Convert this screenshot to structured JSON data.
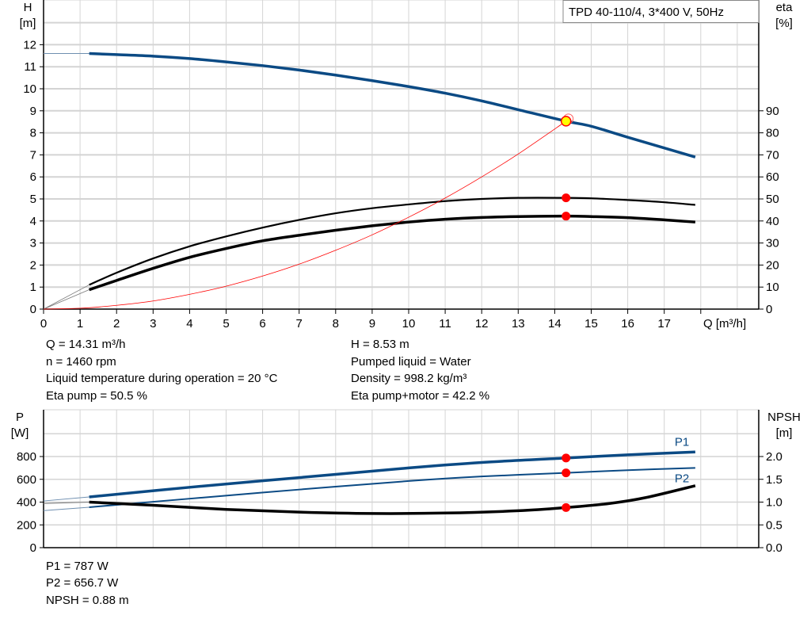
{
  "chart_data": [
    {
      "type": "line",
      "title": "TPD 40-110/4, 3*400 V, 50Hz",
      "xlabel": "Q [m³/h]",
      "ylabel": [
        "H",
        "[m]"
      ],
      "y2label": [
        "eta",
        "[%]"
      ],
      "xlim": [
        0,
        19
      ],
      "ylim": [
        0,
        13
      ],
      "y2lim": [
        0,
        130
      ],
      "xticks": [
        0,
        1,
        2,
        3,
        4,
        5,
        6,
        7,
        8,
        9,
        10,
        11,
        12,
        13,
        14,
        15,
        16,
        17
      ],
      "yticks": [
        0,
        1,
        2,
        3,
        4,
        5,
        6,
        7,
        8,
        9,
        10,
        11,
        12
      ],
      "y2ticks": [
        0,
        10,
        20,
        30,
        40,
        50,
        60,
        70,
        80,
        90
      ],
      "grid": true,
      "series": [
        {
          "key": "H",
          "axis": "left",
          "color": "#0b4a84",
          "x": [
            1.25,
            2,
            3,
            4,
            5,
            6,
            7,
            8,
            9,
            10,
            11,
            12,
            13,
            14.31,
            15,
            16,
            17.85
          ],
          "y": [
            11.6,
            11.55,
            11.48,
            11.37,
            11.22,
            11.05,
            10.85,
            10.62,
            10.37,
            10.1,
            9.8,
            9.45,
            9.05,
            8.53,
            8.3,
            7.8,
            6.9
          ],
          "extension_to_zero": 11.6
        },
        {
          "key": "eta_pump",
          "axis": "right",
          "color": "#000000",
          "x": [
            1.25,
            2,
            3,
            4,
            5,
            6,
            7,
            8,
            9,
            10,
            11,
            12,
            13,
            14.31,
            15,
            16,
            17,
            17.85
          ],
          "y": [
            11,
            16.5,
            23,
            28.5,
            33,
            37,
            40.5,
            43.5,
            45.8,
            47.5,
            49,
            50,
            50.5,
            50.5,
            50.3,
            49.5,
            48.5,
            47.3
          ]
        },
        {
          "key": "eta_pump_motor",
          "axis": "right",
          "color": "#000000",
          "x": [
            1.25,
            2,
            3,
            4,
            5,
            6,
            7,
            8,
            9,
            10,
            11,
            12,
            13,
            14.31,
            15,
            16,
            17,
            17.85
          ],
          "y": [
            8.8,
            13,
            18.5,
            23.5,
            27.5,
            31,
            33.5,
            35.8,
            37.8,
            39.5,
            40.8,
            41.6,
            42,
            42.2,
            42,
            41.5,
            40.5,
            39.5
          ]
        },
        {
          "key": "system_curve",
          "axis": "left",
          "color": "#ff0000",
          "x": [
            0,
            1,
            2,
            3,
            4,
            5,
            6,
            7,
            8,
            9,
            10,
            11,
            12,
            13,
            14.31
          ],
          "y": [
            0,
            0.04,
            0.17,
            0.37,
            0.67,
            1.04,
            1.5,
            2.04,
            2.67,
            3.37,
            4.17,
            5.04,
            6.0,
            7.04,
            8.53
          ]
        }
      ],
      "duty_points": [
        {
          "series": "H",
          "x": 14.31,
          "y": 8.53,
          "color": "#ffff00"
        },
        {
          "series": "eta_pump",
          "x": 14.31,
          "y": 50.5,
          "color": "#ff0000"
        },
        {
          "series": "eta_pump_motor",
          "x": 14.31,
          "y": 42.2,
          "color": "#ff0000"
        }
      ]
    },
    {
      "type": "line",
      "ylabel": [
        "P",
        "[W]"
      ],
      "y2label": [
        "NPSH",
        "[m]"
      ],
      "xlim": [
        0,
        19
      ],
      "ylim": [
        0,
        1000
      ],
      "y2lim": [
        0,
        2.5
      ],
      "yticks": [
        0,
        200,
        400,
        600,
        800
      ],
      "y2ticks": [
        "0.0",
        "0.5",
        "1.0",
        "1.5",
        "2.0"
      ],
      "grid": true,
      "series": [
        {
          "key": "P1",
          "name": "P1",
          "axis": "left",
          "color": "#0b4a84",
          "x": [
            1.25,
            4,
            7,
            10,
            12,
            14.31,
            16,
            17.85
          ],
          "y": [
            445,
            530,
            615,
            700,
            748,
            787,
            815,
            840
          ],
          "extension_to_zero": 410
        },
        {
          "key": "P2",
          "name": "P2",
          "axis": "left",
          "color": "#0b4a84",
          "x": [
            1.25,
            4,
            7,
            10,
            12,
            14.31,
            16,
            17.85
          ],
          "y": [
            355,
            430,
            510,
            585,
            625,
            656.7,
            680,
            700
          ],
          "extension_to_zero": 325
        },
        {
          "key": "NPSH",
          "axis": "right",
          "color": "#000000",
          "x": [
            1.25,
            3,
            5,
            7,
            9,
            11,
            13,
            14.31,
            15.5,
            16.5,
            17.85
          ],
          "y": [
            1.0,
            0.93,
            0.84,
            0.78,
            0.75,
            0.76,
            0.81,
            0.88,
            0.97,
            1.1,
            1.36
          ],
          "extension_to_zero": 0.97
        }
      ],
      "duty_points": [
        {
          "series": "P1",
          "x": 14.31,
          "y": 787
        },
        {
          "series": "P2",
          "x": 14.31,
          "y": 656.7
        },
        {
          "series": "NPSH",
          "x": 14.31,
          "y": 0.88
        }
      ]
    }
  ],
  "info_top": {
    "q": "Q = 14.31 m³/h",
    "n": "n = 1460 rpm",
    "temp": "Liquid temperature during operation = 20 °C",
    "eta_pump": "Eta pump = 50.5 %",
    "h": "H = 8.53 m",
    "liquid": "Pumped liquid = Water",
    "density": "Density = 998.2 kg/m³",
    "eta_pm": "Eta pump+motor = 42.2 %"
  },
  "info_bottom": {
    "p1": "P1 = 787 W",
    "p2": "P2 = 656.7 W",
    "npsh": "NPSH = 0.88 m"
  }
}
